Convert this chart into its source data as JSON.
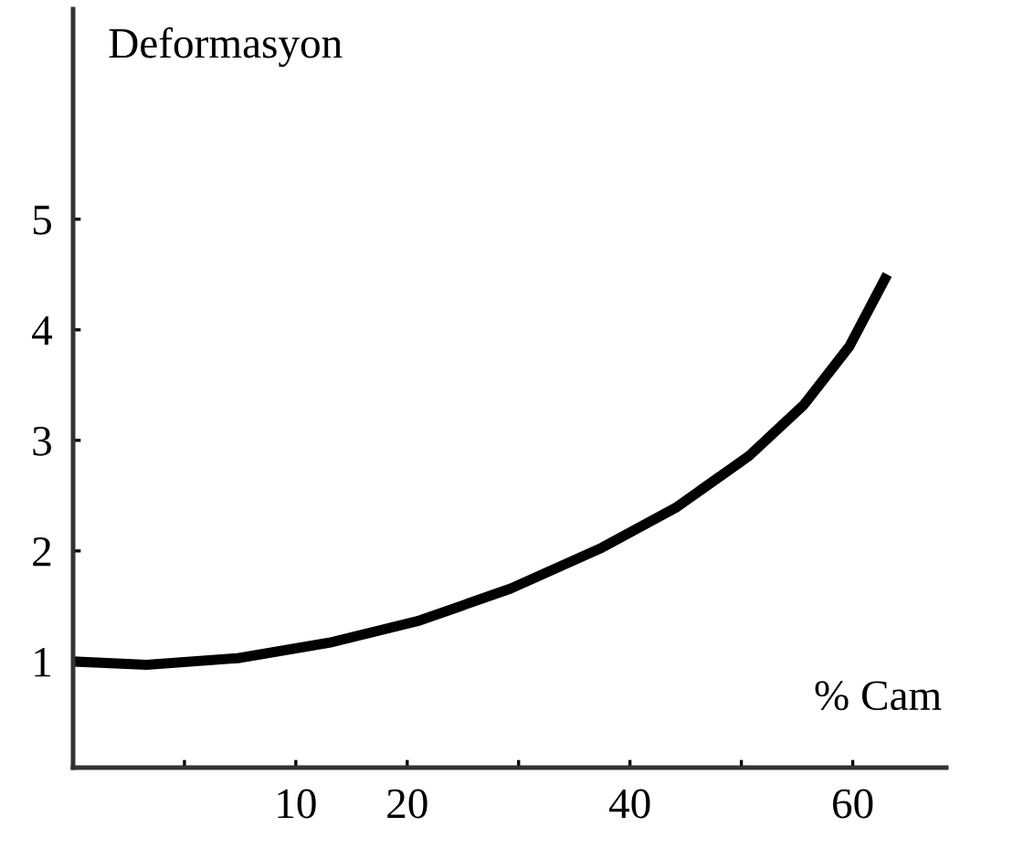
{
  "chart_data": {
    "type": "line",
    "xlabel": "% Cam",
    "ylabel": "Deformasyon",
    "x": [
      -10.0,
      -3.4,
      4.8,
      13.0,
      21.1,
      29.3,
      37.5,
      44.1,
      50.7,
      55.6,
      59.7,
      63.1
    ],
    "series": [
      {
        "color": "#000000",
        "values": [
          1.0,
          0.97,
          1.03,
          1.17,
          1.37,
          1.66,
          2.03,
          2.39,
          2.86,
          3.32,
          3.85,
          4.5
        ]
      }
    ],
    "xlim": [
      -10,
      68.4
    ],
    "ylim": [
      0.04,
      6.9
    ],
    "xticks": [
      {
        "value": 0,
        "label": null
      },
      10,
      20,
      {
        "value": 30,
        "label": null
      },
      40,
      {
        "value": 50,
        "label": null
      },
      60
    ],
    "yticks": [
      1,
      2,
      3,
      4,
      5
    ],
    "grid": false,
    "legend": false,
    "marker": "none",
    "line_style": "solid"
  }
}
